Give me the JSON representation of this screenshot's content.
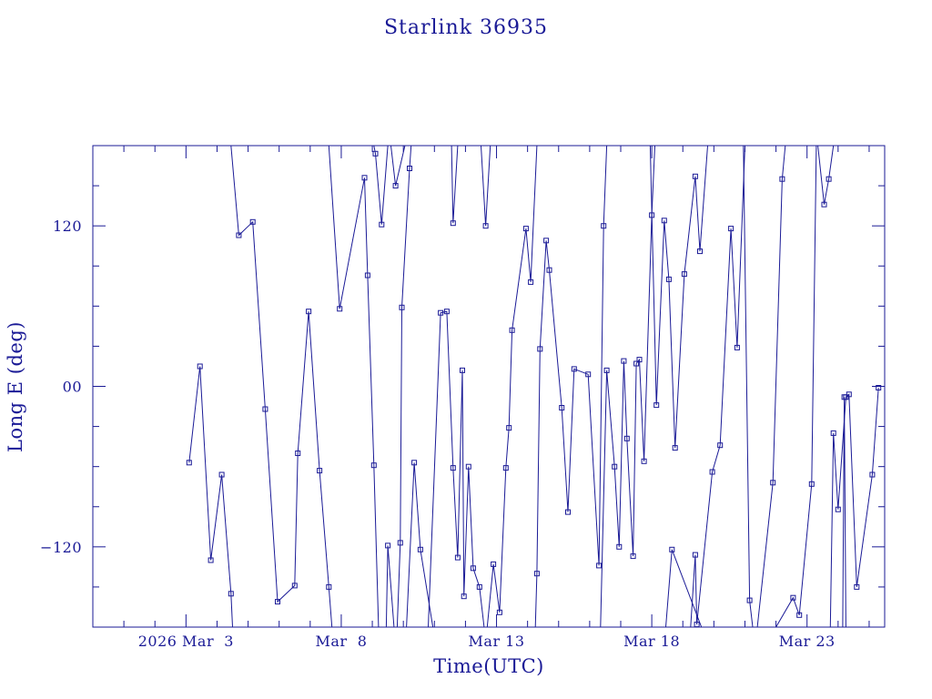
{
  "colors": {
    "foreground": "#1a1a96",
    "background": "#ffffff"
  },
  "chart_data": {
    "type": "line",
    "title": "Starlink 36935",
    "xlabel": "Time(UTC)",
    "ylabel": "Long E (deg)",
    "x_unit": "days of March 2026",
    "xlim": [
      0,
      25.5
    ],
    "ylim": [
      -180,
      180
    ],
    "grid": false,
    "marker": "square",
    "x_ticks": [
      {
        "value": 3,
        "label": "2026 Mar  3"
      },
      {
        "value": 8,
        "label": "Mar  8"
      },
      {
        "value": 13,
        "label": "Mar 13"
      },
      {
        "value": 18,
        "label": "Mar 18"
      },
      {
        "value": 23,
        "label": "Mar 23"
      }
    ],
    "y_ticks": [
      {
        "value": 120,
        "label": "120"
      },
      {
        "value": 0,
        "label": "00"
      },
      {
        "value": -120,
        "label": "−120"
      }
    ],
    "series": [
      {
        "points": [
          [
            3.1,
            -57
          ],
          [
            3.45,
            15
          ],
          [
            3.8,
            -130
          ],
          [
            4.15,
            -66
          ],
          [
            4.45,
            -155
          ],
          [
            4.5,
            -180
          ]
        ]
      },
      {
        "points": [
          [
            4.45,
            180
          ],
          [
            4.7,
            113
          ],
          [
            5.15,
            123
          ],
          [
            5.55,
            -17
          ],
          [
            5.95,
            -161
          ],
          [
            6.5,
            -149
          ],
          [
            6.6,
            -50
          ],
          [
            6.95,
            56
          ],
          [
            7.3,
            -63
          ],
          [
            7.6,
            -150
          ],
          [
            7.7,
            -180
          ]
        ]
      },
      {
        "points": [
          [
            7.6,
            180
          ],
          [
            7.95,
            58
          ],
          [
            8.75,
            156
          ],
          [
            8.85,
            83
          ],
          [
            9.05,
            -59
          ],
          [
            9.2,
            -180
          ]
        ]
      },
      {
        "points": [
          [
            9.05,
            180
          ],
          [
            9.1,
            174
          ],
          [
            9.3,
            121
          ],
          [
            9.5,
            180
          ]
        ]
      },
      {
        "points": [
          [
            9.45,
            -180
          ],
          [
            9.5,
            -119
          ],
          [
            9.7,
            -180
          ]
        ]
      },
      {
        "points": [
          [
            9.6,
            180
          ],
          [
            9.75,
            150
          ],
          [
            10.05,
            180
          ]
        ]
      },
      {
        "points": [
          [
            9.8,
            -180
          ],
          [
            9.9,
            -117
          ],
          [
            9.95,
            59
          ],
          [
            10.2,
            163
          ],
          [
            10.25,
            180
          ]
        ]
      },
      {
        "points": [
          [
            10.1,
            -180
          ],
          [
            10.35,
            -57
          ],
          [
            10.55,
            -122
          ],
          [
            10.95,
            -180
          ]
        ]
      },
      {
        "points": [
          [
            10.8,
            -180
          ],
          [
            11.2,
            55
          ],
          [
            11.4,
            56
          ],
          [
            11.6,
            -61
          ],
          [
            11.75,
            -128
          ],
          [
            11.9,
            12
          ],
          [
            11.95,
            -157
          ],
          [
            12.1,
            -60
          ],
          [
            12.25,
            -136
          ],
          [
            12.45,
            -150
          ],
          [
            12.6,
            -180
          ]
        ]
      },
      {
        "points": [
          [
            11.75,
            180
          ],
          [
            11.6,
            122
          ],
          [
            11.55,
            180
          ]
        ]
      },
      {
        "points": [
          [
            12.5,
            180
          ],
          [
            12.65,
            120
          ],
          [
            12.8,
            180
          ]
        ]
      },
      {
        "points": [
          [
            12.7,
            -180
          ],
          [
            12.9,
            -133
          ],
          [
            13.1,
            -169
          ],
          [
            13.3,
            -61
          ],
          [
            13.4,
            -31
          ],
          [
            13.5,
            42
          ],
          [
            13.95,
            118
          ],
          [
            14.1,
            78
          ],
          [
            14.3,
            180
          ]
        ]
      },
      {
        "points": [
          [
            14.25,
            -180
          ],
          [
            14.3,
            -140
          ],
          [
            14.4,
            28
          ],
          [
            14.6,
            109
          ],
          [
            14.7,
            87
          ],
          [
            15.1,
            -16
          ],
          [
            15.3,
            -94
          ],
          [
            15.5,
            13
          ],
          [
            15.95,
            9
          ],
          [
            16.3,
            -134
          ],
          [
            16.45,
            120
          ],
          [
            16.55,
            180
          ]
        ]
      },
      {
        "points": [
          [
            16.35,
            -180
          ],
          [
            16.55,
            12
          ],
          [
            16.8,
            -60
          ],
          [
            16.95,
            -120
          ],
          [
            17.1,
            19
          ],
          [
            17.2,
            -39
          ],
          [
            17.4,
            -127
          ],
          [
            17.5,
            17
          ],
          [
            17.6,
            20
          ],
          [
            17.75,
            -56
          ],
          [
            18.0,
            128
          ],
          [
            18.1,
            180
          ]
        ]
      },
      {
        "points": [
          [
            17.95,
            180
          ],
          [
            18.15,
            -14
          ],
          [
            18.4,
            124
          ],
          [
            18.55,
            80
          ],
          [
            18.75,
            -46
          ],
          [
            19.05,
            84
          ],
          [
            19.4,
            157
          ],
          [
            19.55,
            101
          ],
          [
            19.8,
            180
          ]
        ]
      },
      {
        "points": [
          [
            18.45,
            -180
          ],
          [
            18.65,
            -122
          ],
          [
            19.6,
            -180
          ]
        ]
      },
      {
        "points": [
          [
            19.25,
            -180
          ],
          [
            19.4,
            -126
          ],
          [
            19.45,
            -178
          ],
          [
            19.95,
            -64
          ],
          [
            20.2,
            -44
          ],
          [
            20.55,
            118
          ],
          [
            20.75,
            29
          ],
          [
            21.0,
            180
          ]
        ]
      },
      {
        "points": [
          [
            20.95,
            180
          ],
          [
            21.15,
            -160
          ],
          [
            21.25,
            -180
          ]
        ]
      },
      {
        "points": [
          [
            21.4,
            -180
          ],
          [
            21.9,
            -72
          ],
          [
            22.2,
            155
          ],
          [
            22.3,
            180
          ]
        ]
      },
      {
        "points": [
          [
            22.0,
            -180
          ],
          [
            22.55,
            -158
          ],
          [
            22.75,
            -171
          ],
          [
            23.15,
            -73
          ],
          [
            23.3,
            180
          ]
        ]
      },
      {
        "points": [
          [
            23.35,
            180
          ],
          [
            23.55,
            136
          ],
          [
            23.7,
            155
          ],
          [
            23.85,
            180
          ]
        ]
      },
      {
        "points": [
          [
            23.75,
            -180
          ],
          [
            23.85,
            -35
          ],
          [
            24.0,
            -92
          ],
          [
            24.25,
            -8
          ],
          [
            24.35,
            -6
          ],
          [
            24.6,
            -150
          ],
          [
            25.1,
            -66
          ],
          [
            25.3,
            -1
          ]
        ]
      },
      {
        "points": [
          [
            24.15,
            -180
          ],
          [
            24.2,
            -8
          ],
          [
            24.25,
            -180
          ]
        ]
      }
    ]
  }
}
